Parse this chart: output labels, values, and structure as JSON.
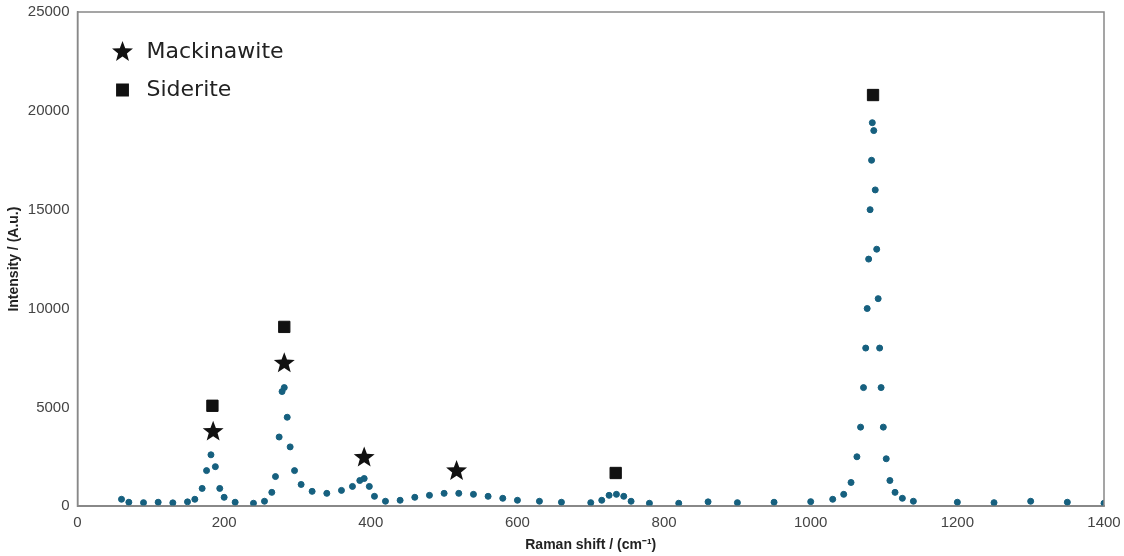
{
  "chart_data": {
    "type": "scatter",
    "xlabel": "Raman shift / (cm⁻¹)",
    "ylabel": "Intensity / (A.u.)",
    "xlim": [
      0,
      1400
    ],
    "xticks": [
      0,
      200,
      400,
      600,
      800,
      1000,
      1200,
      1400
    ],
    "ylim": [
      0,
      25000
    ],
    "yticks": [
      0,
      5000,
      10000,
      15000,
      20000,
      25000
    ],
    "grid": false,
    "legend": "top left",
    "series": [
      {
        "color": "#16607f",
        "marker": "circle",
        "x": [
          60,
          70,
          90,
          110,
          130,
          150,
          160,
          170,
          176,
          182,
          188,
          194,
          200,
          215,
          240,
          255,
          265,
          270,
          275,
          279,
          282,
          286,
          290,
          296,
          305,
          320,
          340,
          360,
          375,
          385,
          391,
          398,
          405,
          420,
          440,
          460,
          480,
          500,
          520,
          540,
          560,
          580,
          600,
          630,
          660,
          700,
          715,
          725,
          735,
          745,
          755,
          780,
          820,
          860,
          900,
          950,
          1000,
          1030,
          1045,
          1055,
          1063,
          1068,
          1072,
          1075,
          1077,
          1079,
          1081,
          1083,
          1084,
          1086,
          1088,
          1090,
          1092,
          1094,
          1096,
          1099,
          1103,
          1108,
          1115,
          1125,
          1140,
          1200,
          1250,
          1300,
          1350,
          1400
        ],
        "values": [
          350,
          200,
          180,
          200,
          170,
          220,
          350,
          900,
          1800,
          2600,
          2000,
          900,
          450,
          200,
          150,
          250,
          700,
          1500,
          3500,
          5800,
          6000,
          4500,
          3000,
          1800,
          1100,
          750,
          650,
          800,
          1000,
          1300,
          1400,
          1000,
          500,
          250,
          300,
          450,
          550,
          650,
          650,
          600,
          500,
          400,
          300,
          250,
          200,
          180,
          300,
          550,
          600,
          500,
          250,
          150,
          150,
          220,
          180,
          200,
          230,
          350,
          600,
          1200,
          2500,
          4000,
          6000,
          8000,
          10000,
          12500,
          15000,
          17500,
          19400,
          19000,
          16000,
          13000,
          10500,
          8000,
          6000,
          4000,
          2400,
          1300,
          700,
          400,
          250,
          200,
          180,
          250,
          200,
          150
        ]
      },
      {
        "name": "Mackinawite",
        "color": "#111111",
        "marker": "star",
        "x": [
          185,
          282,
          391,
          517
        ],
        "values": [
          3770,
          7230,
          2460,
          1780
        ]
      },
      {
        "name": "Siderite",
        "color": "#111111",
        "marker": "square",
        "x": [
          184,
          282,
          734,
          1085
        ],
        "values": [
          5080,
          9070,
          1680,
          20800
        ]
      }
    ]
  }
}
